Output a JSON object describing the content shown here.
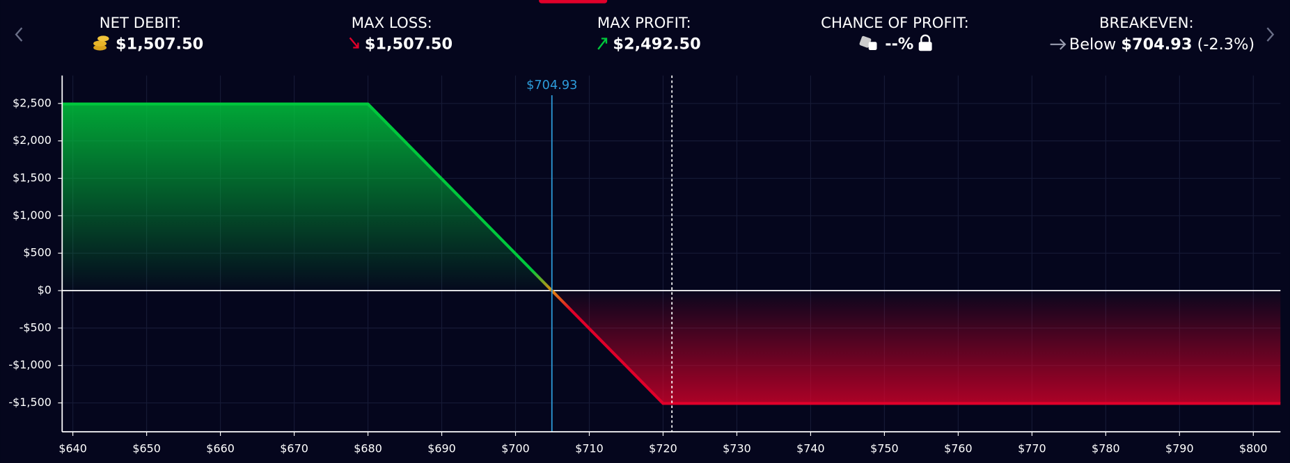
{
  "header": {
    "stats": [
      {
        "label": "NET DEBIT:",
        "value": "$1,507.50"
      },
      {
        "label": "MAX LOSS:",
        "value": "$1,507.50"
      },
      {
        "label": "MAX PROFIT:",
        "value": "$2,492.50"
      },
      {
        "label": "CHANCE OF PROFIT:",
        "value": "--%"
      },
      {
        "label": "BREAKEVEN:",
        "prefix": "Below",
        "value": "$704.93",
        "suffix": "(-2.3%)"
      }
    ]
  },
  "chart_data": {
    "type": "line",
    "x": [
      638.55,
      680,
      704.93,
      720,
      803.68
    ],
    "values": [
      2492.5,
      2492.5,
      0,
      -1507.5,
      -1507.5
    ],
    "xlim": [
      638.55,
      803.68
    ],
    "ylim": [
      -1886,
      2873
    ],
    "xticks": [
      {
        "value": 640,
        "label": "$640"
      },
      {
        "value": 650,
        "label": "$650"
      },
      {
        "value": 660,
        "label": "$660"
      },
      {
        "value": 670,
        "label": "$670"
      },
      {
        "value": 680,
        "label": "$680"
      },
      {
        "value": 690,
        "label": "$690"
      },
      {
        "value": 700,
        "label": "$700"
      },
      {
        "value": 710,
        "label": "$710"
      },
      {
        "value": 720,
        "label": "$720"
      },
      {
        "value": 730,
        "label": "$730"
      },
      {
        "value": 740,
        "label": "$740"
      },
      {
        "value": 750,
        "label": "$750"
      },
      {
        "value": 760,
        "label": "$760"
      },
      {
        "value": 770,
        "label": "$770"
      },
      {
        "value": 780,
        "label": "$780"
      },
      {
        "value": 790,
        "label": "$790"
      },
      {
        "value": 800,
        "label": "$800"
      }
    ],
    "yticks": [
      {
        "value": 2500,
        "label": "$2,500"
      },
      {
        "value": 2000,
        "label": "$2,000"
      },
      {
        "value": 1500,
        "label": "$1,500"
      },
      {
        "value": 1000,
        "label": "$1,000"
      },
      {
        "value": 500,
        "label": "$500"
      },
      {
        "value": 0,
        "label": "$0"
      },
      {
        "value": -500,
        "label": "-$500"
      },
      {
        "value": -1000,
        "label": "-$1,000"
      },
      {
        "value": -1500,
        "label": "-$1,500"
      }
    ],
    "grid": true,
    "positive_color": "#00c83c",
    "negative_color": "#e0002a",
    "annotations": [
      {
        "x": 704.93,
        "label": "$704.93",
        "color": "#2d9cdb"
      },
      {
        "x": 721.2,
        "color": "#ffffff"
      }
    ]
  }
}
